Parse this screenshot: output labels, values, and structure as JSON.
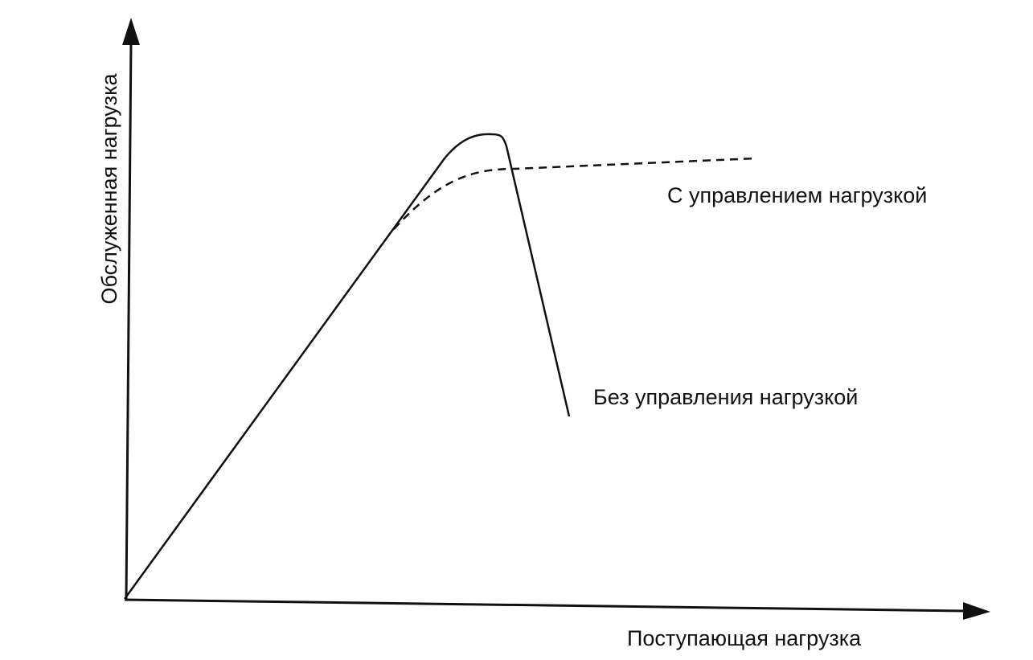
{
  "axes": {
    "y_label": "Обслуженная нагрузка",
    "x_label": "Поступающая нагрузка"
  },
  "curves": [
    {
      "label": "С управлением нагрузкой"
    },
    {
      "label": "Без управления нагрузкой"
    }
  ]
}
